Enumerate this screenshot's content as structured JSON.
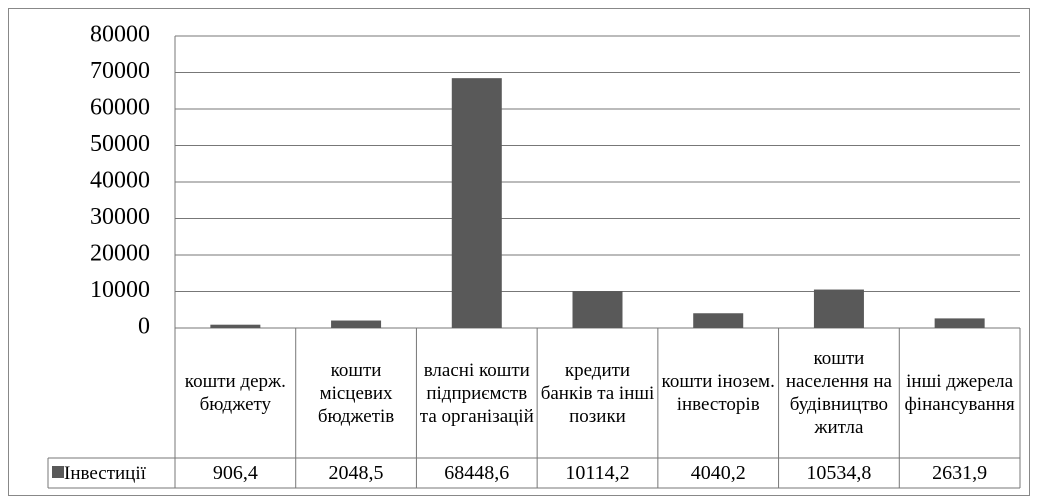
{
  "chart_data": {
    "type": "bar",
    "categories": [
      "кошти держ. бюджету",
      "кошти місцевих бюджетів",
      "власні кошти підприємств та організацій",
      "кредити банків та інші позики",
      "кошти інозем. інвесторів",
      "кошти населення на будівництво житла",
      "інші джерела фінансування"
    ],
    "series": [
      {
        "name": "Інвестиції",
        "color": "#595959",
        "values": [
          906.4,
          2048.5,
          68448.6,
          10114.2,
          4040.2,
          10534.8,
          2631.9
        ],
        "value_labels": [
          "906,4",
          "2048,5",
          "68448,6",
          "10114,2",
          "4040,2",
          "10534,8",
          "2631,9"
        ]
      }
    ],
    "ylim": [
      0,
      80000
    ],
    "yticks": [
      0,
      10000,
      20000,
      30000,
      40000,
      50000,
      60000,
      70000,
      80000
    ],
    "grid": true
  }
}
